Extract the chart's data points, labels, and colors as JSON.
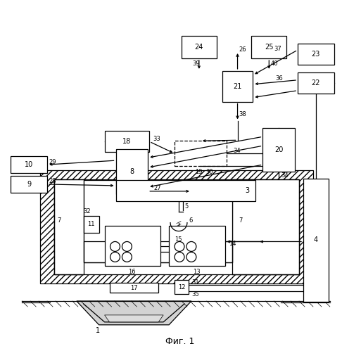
{
  "title": "Фиг. 1",
  "bg": "#ffffff",
  "lc": "#000000"
}
